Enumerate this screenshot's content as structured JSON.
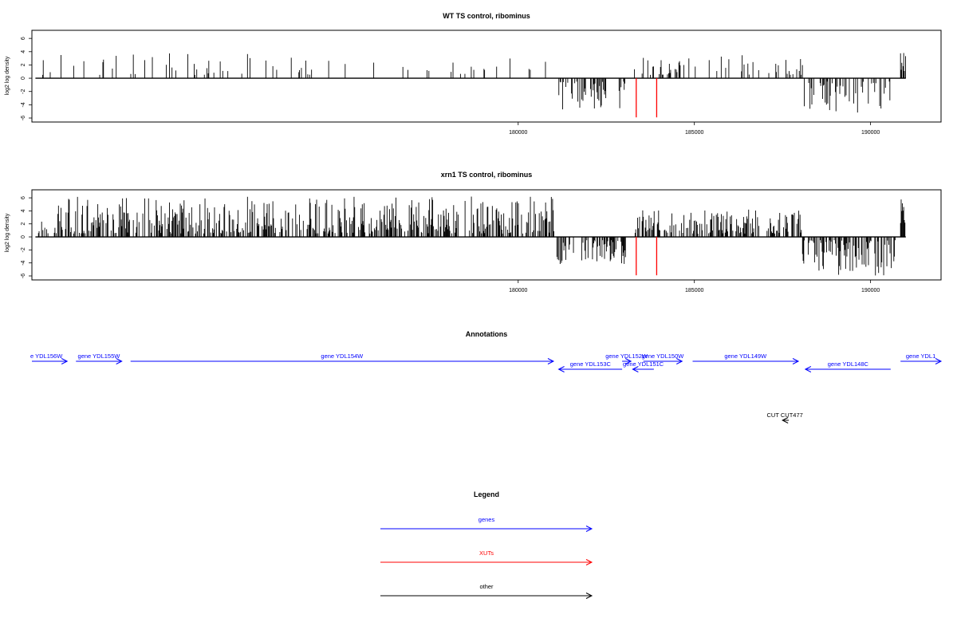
{
  "chart_data": [
    {
      "type": "bar",
      "title": "WT TS control, ribominus",
      "xlabel": "",
      "ylabel": "log2 log density",
      "xlim": [
        166200,
        192000
      ],
      "ylim": [
        -6,
        6.5
      ],
      "x_ticks": [
        180000,
        185000,
        190000
      ],
      "y_ticks": [
        -6,
        -4,
        -2,
        0,
        2,
        4,
        6
      ],
      "x_tick_labels": [
        "180000",
        "185000",
        "190000"
      ],
      "y_tick_labels": [
        "-6",
        "-4",
        "-2",
        "0",
        "2",
        "4",
        "6"
      ],
      "baseline": {
        "x_start": 166300,
        "x_end": 191000,
        "y": 0
      },
      "highlight_color": "#ff0000",
      "highlights": [
        {
          "x": 183350,
          "y": -5.9
        },
        {
          "x": 183930,
          "y": -5.9
        }
      ],
      "regions": [
        {
          "x_start": 166450,
          "x_end": 175000,
          "sign": 1,
          "density": 0.09,
          "min": 0.5,
          "max": 3.9
        },
        {
          "x_start": 175000,
          "x_end": 178200,
          "sign": 1,
          "density": 0.05,
          "min": 0.5,
          "max": 3.3
        },
        {
          "x_start": 178200,
          "x_end": 181100,
          "sign": 1,
          "density": 0.06,
          "min": 0.5,
          "max": 3.4
        },
        {
          "x_start": 181100,
          "x_end": 183050,
          "sign": -1,
          "density": 0.38,
          "min": 0.5,
          "max": 4.8
        },
        {
          "x_start": 183300,
          "x_end": 184700,
          "sign": 1,
          "density": 0.34,
          "min": 0.5,
          "max": 3.2
        },
        {
          "x_start": 184700,
          "x_end": 188100,
          "sign": 1,
          "density": 0.14,
          "min": 0.5,
          "max": 3.5
        },
        {
          "x_start": 188100,
          "x_end": 190600,
          "sign": -1,
          "density": 0.36,
          "min": 0.5,
          "max": 5.3
        },
        {
          "x_start": 190850,
          "x_end": 191000,
          "sign": 1,
          "density": 0.8,
          "min": 1.0,
          "max": 3.9
        }
      ]
    },
    {
      "type": "bar",
      "title": "xrn1 TS control, ribominus",
      "xlabel": "",
      "ylabel": "log2 log density",
      "xlim": [
        166200,
        192000
      ],
      "ylim": [
        -6,
        6.5
      ],
      "x_ticks": [
        180000,
        185000,
        190000
      ],
      "y_ticks": [
        -6,
        -4,
        -2,
        0,
        2,
        4,
        6
      ],
      "x_tick_labels": [
        "180000",
        "185000",
        "190000"
      ],
      "y_tick_labels": [
        "-6",
        "-4",
        "-2",
        "0",
        "2",
        "4",
        "6"
      ],
      "baseline": {
        "x_start": 166300,
        "x_end": 191000,
        "y": 0
      },
      "highlight_color": "#ff0000",
      "highlights": [
        {
          "x": 183350,
          "y": -5.9
        },
        {
          "x": 183930,
          "y": -5.9
        }
      ],
      "regions": [
        {
          "x_start": 166350,
          "x_end": 166900,
          "sign": 1,
          "density": 0.3,
          "min": 0.5,
          "max": 2.5
        },
        {
          "x_start": 166900,
          "x_end": 181100,
          "sign": 1,
          "density": 0.55,
          "min": 0.5,
          "max": 6.2
        },
        {
          "x_start": 181100,
          "x_end": 183050,
          "sign": -1,
          "density": 0.45,
          "min": 0.5,
          "max": 4.2
        },
        {
          "x_start": 183300,
          "x_end": 188050,
          "sign": 1,
          "density": 0.55,
          "min": 0.5,
          "max": 4.2
        },
        {
          "x_start": 188050,
          "x_end": 190700,
          "sign": -1,
          "density": 0.55,
          "min": 0.5,
          "max": 6.0
        },
        {
          "x_start": 190850,
          "x_end": 191000,
          "sign": 1,
          "density": 0.8,
          "min": 1.5,
          "max": 5.8
        }
      ]
    }
  ],
  "annotations": {
    "title": "Annotations",
    "items": [
      {
        "label": "e YDL156W",
        "x_start": 166200,
        "x_end": 167200,
        "direction": "right",
        "row": 0,
        "color": "#0000ff"
      },
      {
        "label": "gene YDL155W",
        "x_start": 167450,
        "x_end": 168750,
        "direction": "right",
        "row": 0,
        "color": "#0000ff"
      },
      {
        "label": "gene YDL154W",
        "x_start": 169000,
        "x_end": 181000,
        "direction": "right",
        "row": 0,
        "color": "#0000ff"
      },
      {
        "label": "gene YDL153C",
        "x_start": 181150,
        "x_end": 182950,
        "direction": "left",
        "row": 1,
        "color": "#0000ff"
      },
      {
        "label": "gene YDL152W",
        "x_start": 182950,
        "x_end": 183200,
        "direction": "right",
        "row": 0,
        "color": "#0000ff"
      },
      {
        "label": "gene YDL151C",
        "x_start": 183250,
        "x_end": 183850,
        "direction": "left",
        "row": 1,
        "color": "#0000ff"
      },
      {
        "label": "gene YDL150W",
        "x_start": 183550,
        "x_end": 184650,
        "direction": "right",
        "row": 0,
        "color": "#0000ff"
      },
      {
        "label": "gene YDL149W",
        "x_start": 184950,
        "x_end": 187950,
        "direction": "right",
        "row": 0,
        "color": "#0000ff"
      },
      {
        "label": "gene YDL148C",
        "x_start": 188150,
        "x_end": 190570,
        "direction": "left",
        "row": 1,
        "color": "#0000ff"
      },
      {
        "label": "gene YDL1",
        "x_start": 190850,
        "x_end": 192000,
        "direction": "right",
        "row": 0,
        "color": "#0000ff"
      },
      {
        "label": "CUT CUT477",
        "x_start": 187500,
        "x_end": 187680,
        "direction": "left",
        "row": 2,
        "color": "#000000"
      }
    ]
  },
  "legend": {
    "title": "Legend",
    "entries": [
      {
        "label": "genes",
        "color": "#0000ff"
      },
      {
        "label": "XUTs",
        "color": "#ff0000"
      },
      {
        "label": "other",
        "color": "#000000"
      }
    ]
  }
}
